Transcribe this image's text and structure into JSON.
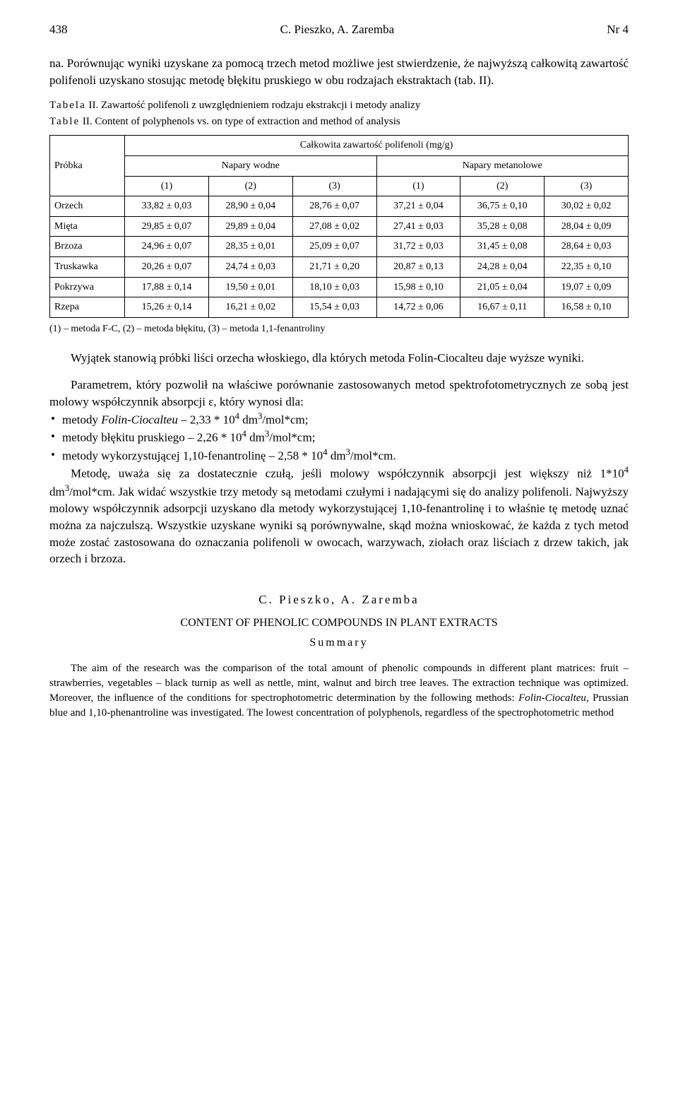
{
  "header": {
    "page_number": "438",
    "authors_short": "C. Pieszko, A. Zaremba",
    "issue": "Nr 4"
  },
  "intro_para": "na. Porównując wyniki uzyskane za pomocą trzech metod możliwe jest stwierdzenie, że najwyższą całkowitą zawartość polifenoli uzyskano stosując metodę błękitu pruskiego w obu rodzajach ekstraktach (tab. II).",
  "table_caption_pl": "Tabela II. Zawartość polifenoli z uwzględnieniem rodzaju ekstrakcji i metody analizy",
  "table_caption_en": "Table II. Content of polyphenols vs. on type of extraction and method of analysis",
  "table": {
    "corner_label": "Próbka",
    "super_header": "Całkowita zawartość polifenoli (mg/g)",
    "group_headers": [
      "Napary wodne",
      "Napary metanolowe"
    ],
    "sub_headers": [
      "(1)",
      "(2)",
      "(3)",
      "(1)",
      "(2)",
      "(3)"
    ],
    "rows": [
      {
        "label": "Orzech",
        "cells": [
          "33,82 ± 0,03",
          "28,90 ± 0,04",
          "28,76 ± 0,07",
          "37,21 ± 0,04",
          "36,75 ± 0,10",
          "30,02 ± 0,02"
        ]
      },
      {
        "label": "Mięta",
        "cells": [
          "29,85 ± 0,07",
          "29,89 ± 0,04",
          "27,08 ± 0,02",
          "27,41 ± 0,03",
          "35,28 ± 0,08",
          "28,04 ± 0,09"
        ]
      },
      {
        "label": "Brzoza",
        "cells": [
          "24,96 ± 0,07",
          "28,35 ± 0,01",
          "25,09 ± 0,07",
          "31,72 ± 0,03",
          "31,45 ± 0,08",
          "28,64 ± 0,03"
        ]
      },
      {
        "label": "Truskawka",
        "cells": [
          "20,26 ± 0,07",
          "24,74 ± 0,03",
          "21,71 ± 0,20",
          "20,87 ± 0,13",
          "24,28 ± 0,04",
          "22,35 ± 0,10"
        ]
      },
      {
        "label": "Pokrzywa",
        "cells": [
          "17,88 ± 0,14",
          "19,50 ± 0,01",
          "18,10 ± 0,03",
          "15,98 ± 0,10",
          "21,05 ± 0,04",
          "19,07 ± 0,09"
        ]
      },
      {
        "label": "Rzepa",
        "cells": [
          "15,26 ± 0,14",
          "16,21 ± 0,02",
          "15,54 ± 0,03",
          "14,72 ± 0,06",
          "16,67 ± 0,11",
          "16,58 ± 0,10"
        ]
      }
    ],
    "footnote": "(1) – metoda F-C, (2) – metoda błękitu, (3) – metoda 1,1-fenantroliny"
  },
  "body": {
    "p1": "Wyjątek stanowią próbki liści orzecha włoskiego, dla których metoda Folin-Ciocalteu daje wyższe wyniki.",
    "p2": "Parametrem, który pozwolił na właściwe porównanie zastosowanych metod spektrofotometrycznych ze sobą jest molowy współczynnik absorpcji ε, który wynosi dla:",
    "bullets": [
      "metody <i>Folin-Ciocalteu</i> – 2,33 * 10<sup>4</sup> dm<sup>3</sup>/mol*cm;",
      "metody błękitu pruskiego – 2,26 * 10<sup>4</sup> dm<sup>3</sup>/mol*cm;",
      "metody wykorzystującej 1,10-fenantrolinę – 2,58 * 10<sup>4</sup> dm<sup>3</sup>/mol*cm."
    ],
    "p3": "Metodę, uważa się za dostatecznie czułą, jeśli molowy współczynnik absorpcji jest większy niż 1*10<sup>4</sup> dm<sup>3</sup>/mol*cm. Jak widać wszystkie trzy metody są metodami czułymi i nadającymi się do analizy polifenoli. Najwyższy molowy współczynnik adsorpcji uzyskano dla metody wykorzystującej 1,10-fenantrolinę i to właśnie tę metodę uznać można za najczulszą. Wszystkie uzyskane wyniki są porównywalne, skąd można wnioskować, że każda z tych metod może zostać zastosowana do oznaczania polifenoli w owocach, warzywach, ziołach oraz liściach z drzew takich, jak orzech i brzoza."
  },
  "summary": {
    "authors": "C. Pieszko, A. Zaremba",
    "title": "CONTENT OF PHENOLIC COMPOUNDS IN PLANT EXTRACTS",
    "sub": "Summary",
    "text": "The aim of the research was the comparison of the total amount of phenolic compounds in different plant matrices: fruit – strawberries, vegetables – black turnip as well as nettle, mint, walnut and birch tree leaves. The extraction technique was optimized. Moreover, the influence of the conditions for spectrophotometric determination by the following methods: <i>Folin-Ciocalteu</i>, Prussian blue and 1,10-phenantroline was investigated. The lowest concentration of polyphenols, regardless of the spectrophotometric method"
  }
}
